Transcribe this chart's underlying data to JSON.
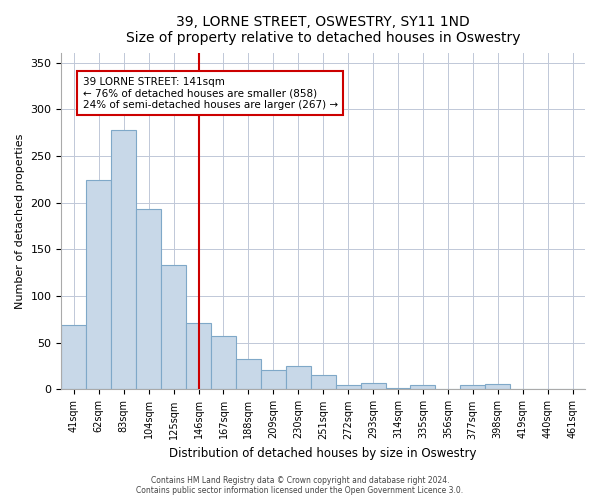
{
  "title": "39, LORNE STREET, OSWESTRY, SY11 1ND",
  "subtitle": "Size of property relative to detached houses in Oswestry",
  "xlabel": "Distribution of detached houses by size in Oswestry",
  "ylabel": "Number of detached properties",
  "bar_labels": [
    "41sqm",
    "62sqm",
    "83sqm",
    "104sqm",
    "125sqm",
    "146sqm",
    "167sqm",
    "188sqm",
    "209sqm",
    "230sqm",
    "251sqm",
    "272sqm",
    "293sqm",
    "314sqm",
    "335sqm",
    "356sqm",
    "377sqm",
    "398sqm",
    "419sqm",
    "440sqm",
    "461sqm"
  ],
  "bar_values": [
    69,
    224,
    278,
    193,
    133,
    71,
    57,
    33,
    21,
    25,
    15,
    5,
    7,
    2,
    5,
    1,
    5,
    6,
    1,
    1,
    1
  ],
  "bar_color": "#c8d8e8",
  "bar_edge_color": "#7fa8c8",
  "vline_x": 5,
  "vline_color": "#cc0000",
  "annotation_title": "39 LORNE STREET: 141sqm",
  "annotation_line1": "← 76% of detached houses are smaller (858)",
  "annotation_line2": "24% of semi-detached houses are larger (267) →",
  "annotation_box_color": "#cc0000",
  "ylim": [
    0,
    360
  ],
  "yticks": [
    0,
    50,
    100,
    150,
    200,
    250,
    300,
    350
  ],
  "footer1": "Contains HM Land Registry data © Crown copyright and database right 2024.",
  "footer2": "Contains public sector information licensed under the Open Government Licence 3.0.",
  "background_color": "#ffffff",
  "grid_color": "#c0c8d8"
}
